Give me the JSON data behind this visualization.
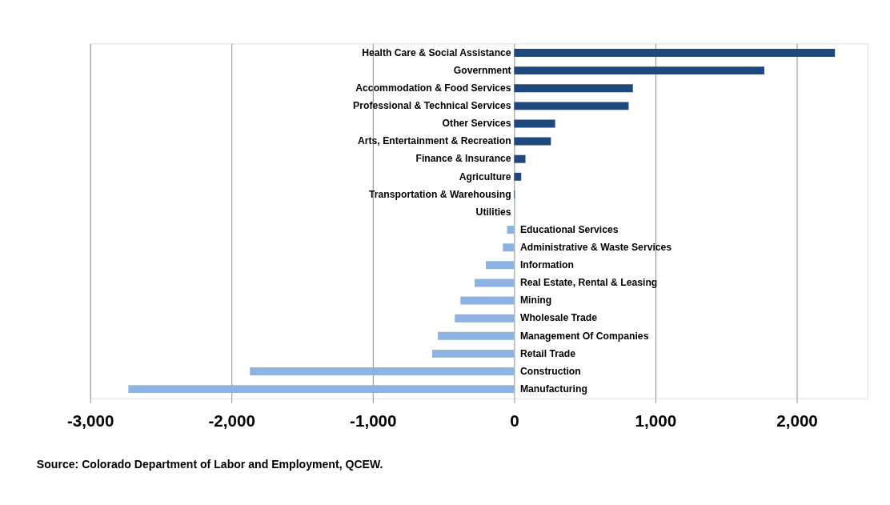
{
  "chart_data": {
    "type": "bar",
    "orientation": "horizontal",
    "categories": [
      "Health Care & Social Assistance",
      "Government",
      "Accommodation & Food Services",
      "Professional & Technical Services",
      "Other Services",
      "Arts, Entertainment & Recreation",
      "Finance & Insurance",
      "Agriculture",
      "Transportation & Warehousing",
      "Utilities",
      "Educational Services",
      "Administrative & Waste Services",
      "Information",
      "Real Estate, Rental & Leasing",
      "Mining",
      "Wholesale Trade",
      "Management Of Companies",
      "Retail Trade",
      "Construction",
      "Manufacturing"
    ],
    "values": [
      2270,
      1770,
      840,
      810,
      290,
      260,
      80,
      50,
      5,
      0,
      -50,
      -80,
      -200,
      -280,
      -380,
      -420,
      -540,
      -580,
      -1870,
      -2730
    ],
    "colors": [
      "#1f497d",
      "#1f497d",
      "#1f497d",
      "#1f497d",
      "#1f497d",
      "#1f497d",
      "#1f497d",
      "#1f497d",
      "#1f497d",
      "#1f497d",
      "#8db3e2",
      "#8db3e2",
      "#8db3e2",
      "#8db3e2",
      "#8db3e2",
      "#8db3e2",
      "#8db3e2",
      "#8db3e2",
      "#8db3e2",
      "#8db3e2"
    ],
    "xlim": [
      -3000,
      2500
    ],
    "xticks": [
      {
        "value": -3000,
        "label": "-3,000"
      },
      {
        "value": -2000,
        "label": "-2,000"
      },
      {
        "value": -1000,
        "label": "-1,000"
      },
      0,
      {
        "value": 1000,
        "label": "1,000"
      },
      {
        "value": 2000,
        "label": "2,000"
      }
    ],
    "grid": "x",
    "legend": false,
    "annotations": [
      "Source: Colorado Department of Labor and Employment, QCEW."
    ]
  }
}
